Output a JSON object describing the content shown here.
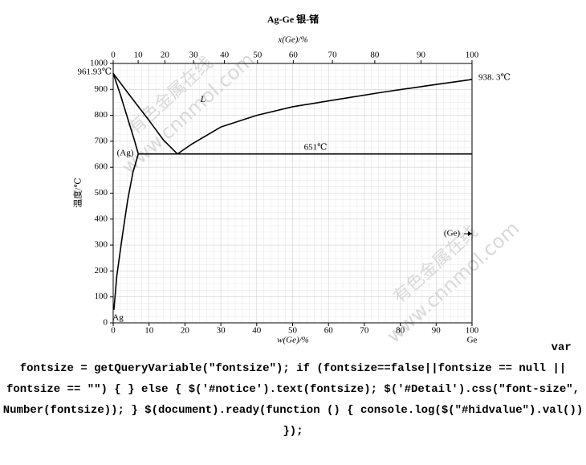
{
  "chart_data": {
    "type": "line",
    "title": "Ag-Ge  银-锗",
    "xlabel": "w(Ge)/%",
    "x2label": "x(Ge)/%",
    "ylabel": "温度/℃",
    "xlim": [
      0,
      100
    ],
    "xticks": [
      0,
      10,
      20,
      30,
      40,
      50,
      60,
      70,
      80,
      90,
      100
    ],
    "x2ticks": [
      {
        "value": 0,
        "label": "0"
      },
      {
        "value": 6.96,
        "label": "10"
      },
      {
        "value": 14.4,
        "label": "20"
      },
      {
        "value": 22.4,
        "label": "30"
      },
      {
        "value": 31,
        "label": "40"
      },
      {
        "value": 40.2,
        "label": "50"
      },
      {
        "value": 50.2,
        "label": "60"
      },
      {
        "value": 61.1,
        "label": "70"
      },
      {
        "value": 72.9,
        "label": "80"
      },
      {
        "value": 85.8,
        "label": "90"
      },
      {
        "value": 100,
        "label": "100"
      }
    ],
    "ylim": [
      0,
      1000
    ],
    "yticks": [
      0,
      100,
      200,
      300,
      400,
      500,
      600,
      700,
      800,
      900,
      1000
    ],
    "grid": true,
    "color": "#000000",
    "series": [
      {
        "x": [
          0,
          5,
          10,
          14,
          17.9
        ],
        "values": [
          961.93,
          870,
          780,
          705,
          651
        ]
      },
      {
        "x": [
          17.9,
          22,
          30,
          40,
          50,
          62,
          75,
          88,
          100
        ],
        "values": [
          651,
          690,
          755,
          800,
          833,
          860,
          889,
          915,
          938.3
        ]
      },
      {
        "x": [
          0,
          2,
          4,
          6,
          7
        ],
        "values": [
          961.93,
          880,
          790,
          700,
          651
        ]
      },
      {
        "x": [
          0.2,
          1,
          2.5,
          4,
          5.5,
          7
        ],
        "values": [
          50,
          180,
          330,
          470,
          580,
          651
        ]
      },
      {
        "x": [
          7,
          100
        ],
        "values": [
          651,
          651
        ]
      }
    ],
    "annotations": [
      "961.93℃",
      "938. 3℃",
      "651℃",
      "L",
      "(Ag)",
      "(Ge)",
      "Ag",
      "Ge"
    ],
    "watermarks": [
      "有色金属在线",
      "www.cnnmol.com"
    ]
  },
  "code_text": "var fontsize = getQueryVariable(\"fontsize\"); if (fontsize==false||fontsize == null || fontsize == \"\") { } else { $('#notice').text(fontsize); $('#Detail').css(\"font-size\", Number(fontsize)); } $(document).ready(function () { console.log($(\"#hidvalue\").val()) });"
}
